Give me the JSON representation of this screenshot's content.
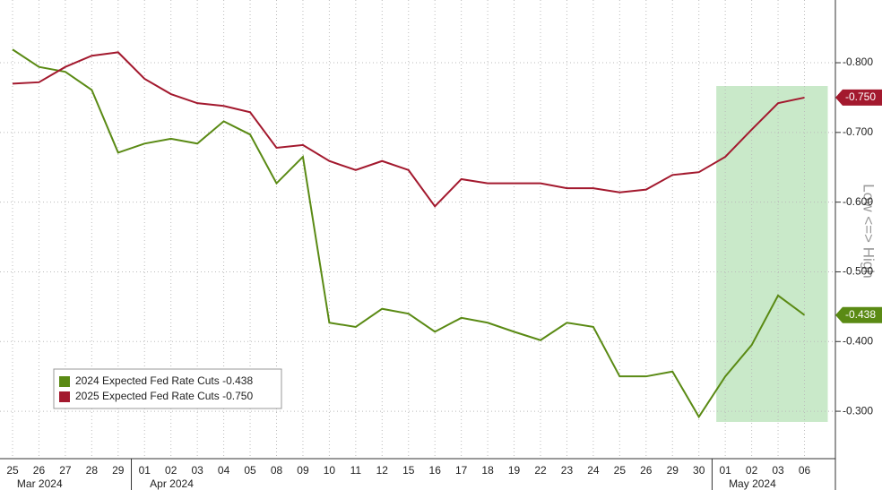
{
  "chart_data": {
    "type": "line",
    "y_axis_label": "Low <=> High",
    "categories": [
      "25",
      "26",
      "27",
      "28",
      "29",
      "01",
      "02",
      "03",
      "04",
      "05",
      "08",
      "09",
      "10",
      "11",
      "12",
      "15",
      "16",
      "17",
      "18",
      "19",
      "22",
      "23",
      "24",
      "25",
      "26",
      "29",
      "30",
      "01",
      "02",
      "03",
      "06"
    ],
    "months": [
      {
        "label": "Mar 2024",
        "start": 0
      },
      {
        "label": "Apr 2024",
        "start": 5
      },
      {
        "label": "May 2024",
        "start": 27
      }
    ],
    "highlight": {
      "start": 27,
      "end": 30,
      "color": "#bfe5bf"
    },
    "series": [
      {
        "name": "2024 Expected Fed Rate Cuts -0.438",
        "color": "#5a8a14",
        "last": {
          "value": -0.438,
          "label": "-0.438"
        },
        "values": [
          -0.819,
          -0.794,
          -0.787,
          -0.761,
          -0.671,
          -0.684,
          -0.691,
          -0.684,
          -0.716,
          -0.697,
          -0.627,
          -0.665,
          -0.427,
          -0.421,
          -0.447,
          -0.44,
          -0.414,
          -0.434,
          -0.427,
          -0.414,
          -0.402,
          -0.427,
          -0.421,
          -0.35,
          -0.35,
          -0.357,
          -0.292,
          -0.35,
          -0.395,
          -0.466,
          -0.438
        ]
      },
      {
        "name": "2025 Expected Fed Rate Cuts -0.750",
        "color": "#a3192e",
        "last": {
          "value": -0.75,
          "label": "-0.750"
        },
        "values": [
          -0.77,
          -0.772,
          -0.794,
          -0.81,
          -0.815,
          -0.777,
          -0.755,
          -0.742,
          -0.738,
          -0.729,
          -0.678,
          -0.682,
          -0.659,
          -0.646,
          -0.659,
          -0.646,
          -0.594,
          -0.633,
          -0.627,
          -0.627,
          -0.627,
          -0.62,
          -0.62,
          -0.614,
          -0.618,
          -0.639,
          -0.643,
          -0.665,
          -0.704,
          -0.742,
          -0.75
        ]
      }
    ],
    "ylim": [
      -0.232,
      -0.89
    ],
    "yticks": [
      {
        "value": -0.8,
        "label": "-0.800"
      },
      {
        "value": -0.7,
        "label": "-0.700"
      },
      {
        "value": -0.6,
        "label": "-0.600"
      },
      {
        "value": -0.5,
        "label": "-0.500"
      },
      {
        "value": -0.4,
        "label": "-0.400"
      },
      {
        "value": -0.3,
        "label": "-0.300"
      }
    ],
    "grid": true,
    "legend": "lower left"
  }
}
